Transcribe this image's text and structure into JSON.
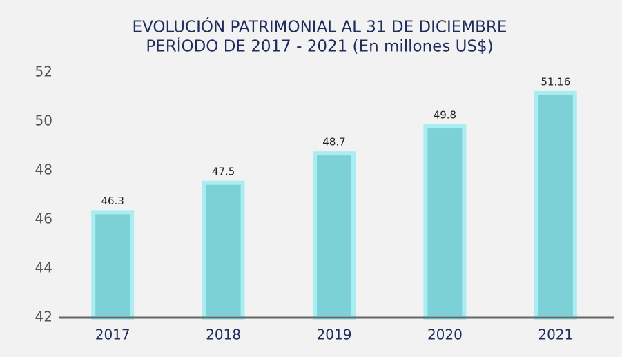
{
  "chart_data": {
    "type": "bar",
    "title": "EVOLUCIÓN PATRIMONIAL AL 31 DE DICIEMBRE",
    "subtitle": "PERÍODO DE 2017 - 2021 (En millones US$)",
    "categories": [
      "2017",
      "2018",
      "2019",
      "2020",
      "2021"
    ],
    "values": [
      46.3,
      47.5,
      48.7,
      49.8,
      51.16
    ],
    "color": "#7bd1d5",
    "ylim": [
      42,
      52
    ],
    "yticks": [
      42,
      44,
      46,
      48,
      50,
      52
    ],
    "grid": false
  }
}
